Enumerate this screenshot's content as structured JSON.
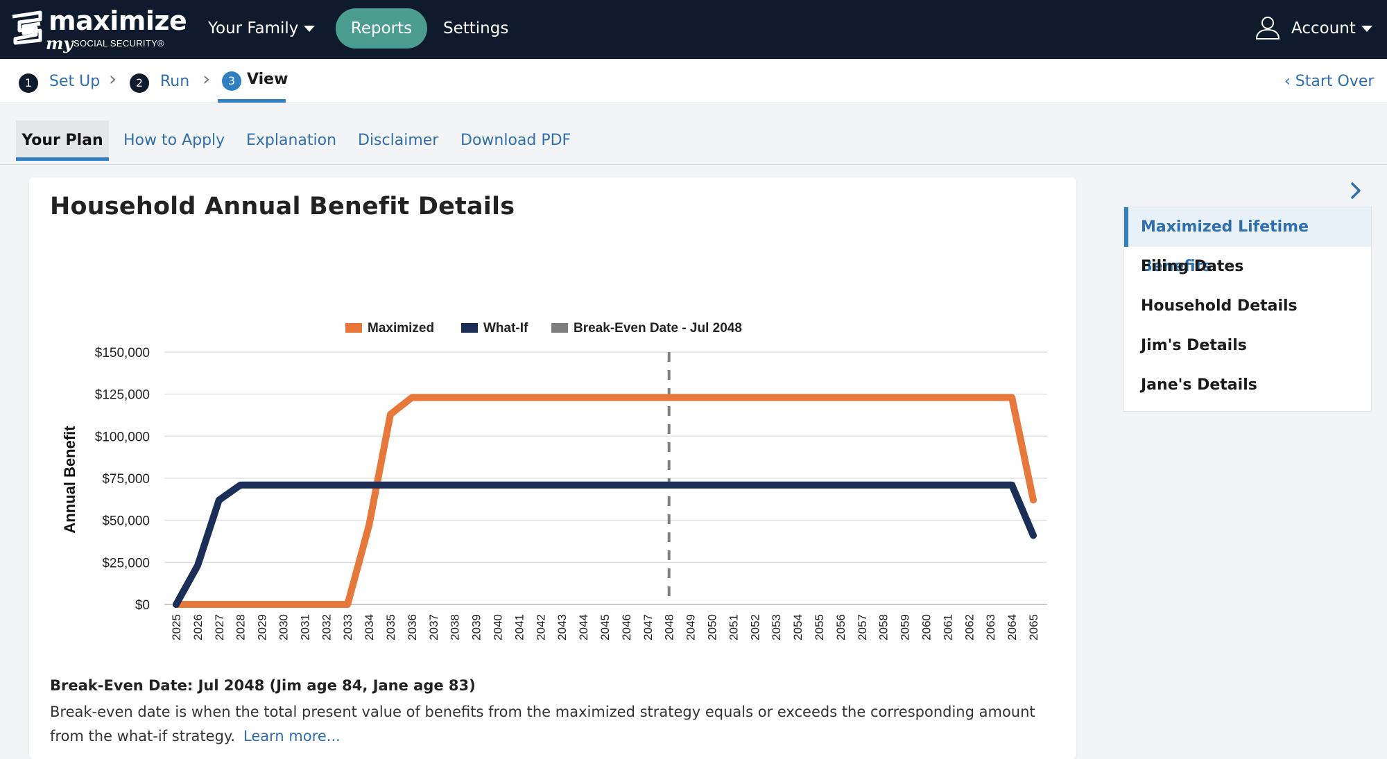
{
  "nav": {
    "logo_word": "maximize",
    "logo_my": "my",
    "logo_sub": "SOCIAL SECURITY®",
    "your_family": "Your Family",
    "reports": "Reports",
    "settings": "Settings",
    "account": "Account"
  },
  "steps": [
    {
      "num": "1",
      "label": "Set Up"
    },
    {
      "num": "2",
      "label": "Run"
    },
    {
      "num": "3",
      "label": "View"
    }
  ],
  "start_over": "Start Over",
  "tabs": [
    "Your Plan",
    "How to Apply",
    "Explanation",
    "Disclaimer",
    "Download PDF"
  ],
  "card": {
    "title": "Household Annual Benefit Details",
    "break_even_title": "Break-Even Date: Jul 2048 (Jim age 84, Jane age 83)",
    "break_even_text": "Break-even date is when the total present value of benefits from the maximized strategy equals or exceeds the corresponding amount from the what-if strategy.",
    "learn_more": "Learn more..."
  },
  "side_nav": {
    "items": [
      "Maximized Lifetime Benefits",
      "Filing Dates",
      "Household Details",
      "Jim's Details",
      "Jane's Details"
    ],
    "active_index": 0
  },
  "colors": {
    "maximized": "#e8783a",
    "what_if": "#1a2e57",
    "break_even": "#7f7f7f",
    "accent": "#2f7fc1"
  },
  "chart_data": {
    "type": "line",
    "ylabel": "Annual Benefit",
    "ylim": [
      0,
      150000
    ],
    "yticks": [
      "$0",
      "$25,000",
      "$50,000",
      "$75,000",
      "$100,000",
      "$125,000",
      "$150,000"
    ],
    "x": [
      2025,
      2026,
      2027,
      2028,
      2029,
      2030,
      2031,
      2032,
      2033,
      2034,
      2035,
      2036,
      2037,
      2038,
      2039,
      2040,
      2041,
      2042,
      2043,
      2044,
      2045,
      2046,
      2047,
      2048,
      2049,
      2050,
      2051,
      2052,
      2053,
      2054,
      2055,
      2056,
      2057,
      2058,
      2059,
      2060,
      2061,
      2062,
      2063,
      2064,
      2065
    ],
    "series": [
      {
        "name": "Maximized",
        "values": [
          0,
          0,
          0,
          0,
          0,
          0,
          0,
          0,
          0,
          47000,
          113000,
          123000,
          123000,
          123000,
          123000,
          123000,
          123000,
          123000,
          123000,
          123000,
          123000,
          123000,
          123000,
          123000,
          123000,
          123000,
          123000,
          123000,
          123000,
          123000,
          123000,
          123000,
          123000,
          123000,
          123000,
          123000,
          123000,
          123000,
          123000,
          123000,
          62000
        ]
      },
      {
        "name": "What-If",
        "values": [
          0,
          23000,
          62000,
          71000,
          71000,
          71000,
          71000,
          71000,
          71000,
          71000,
          71000,
          71000,
          71000,
          71000,
          71000,
          71000,
          71000,
          71000,
          71000,
          71000,
          71000,
          71000,
          71000,
          71000,
          71000,
          71000,
          71000,
          71000,
          71000,
          71000,
          71000,
          71000,
          71000,
          71000,
          71000,
          71000,
          71000,
          71000,
          71000,
          71000,
          41000
        ]
      }
    ],
    "break_even": {
      "label": "Break-Even Date - Jul 2048",
      "x": 2048
    },
    "legend": "top",
    "grid": true
  }
}
